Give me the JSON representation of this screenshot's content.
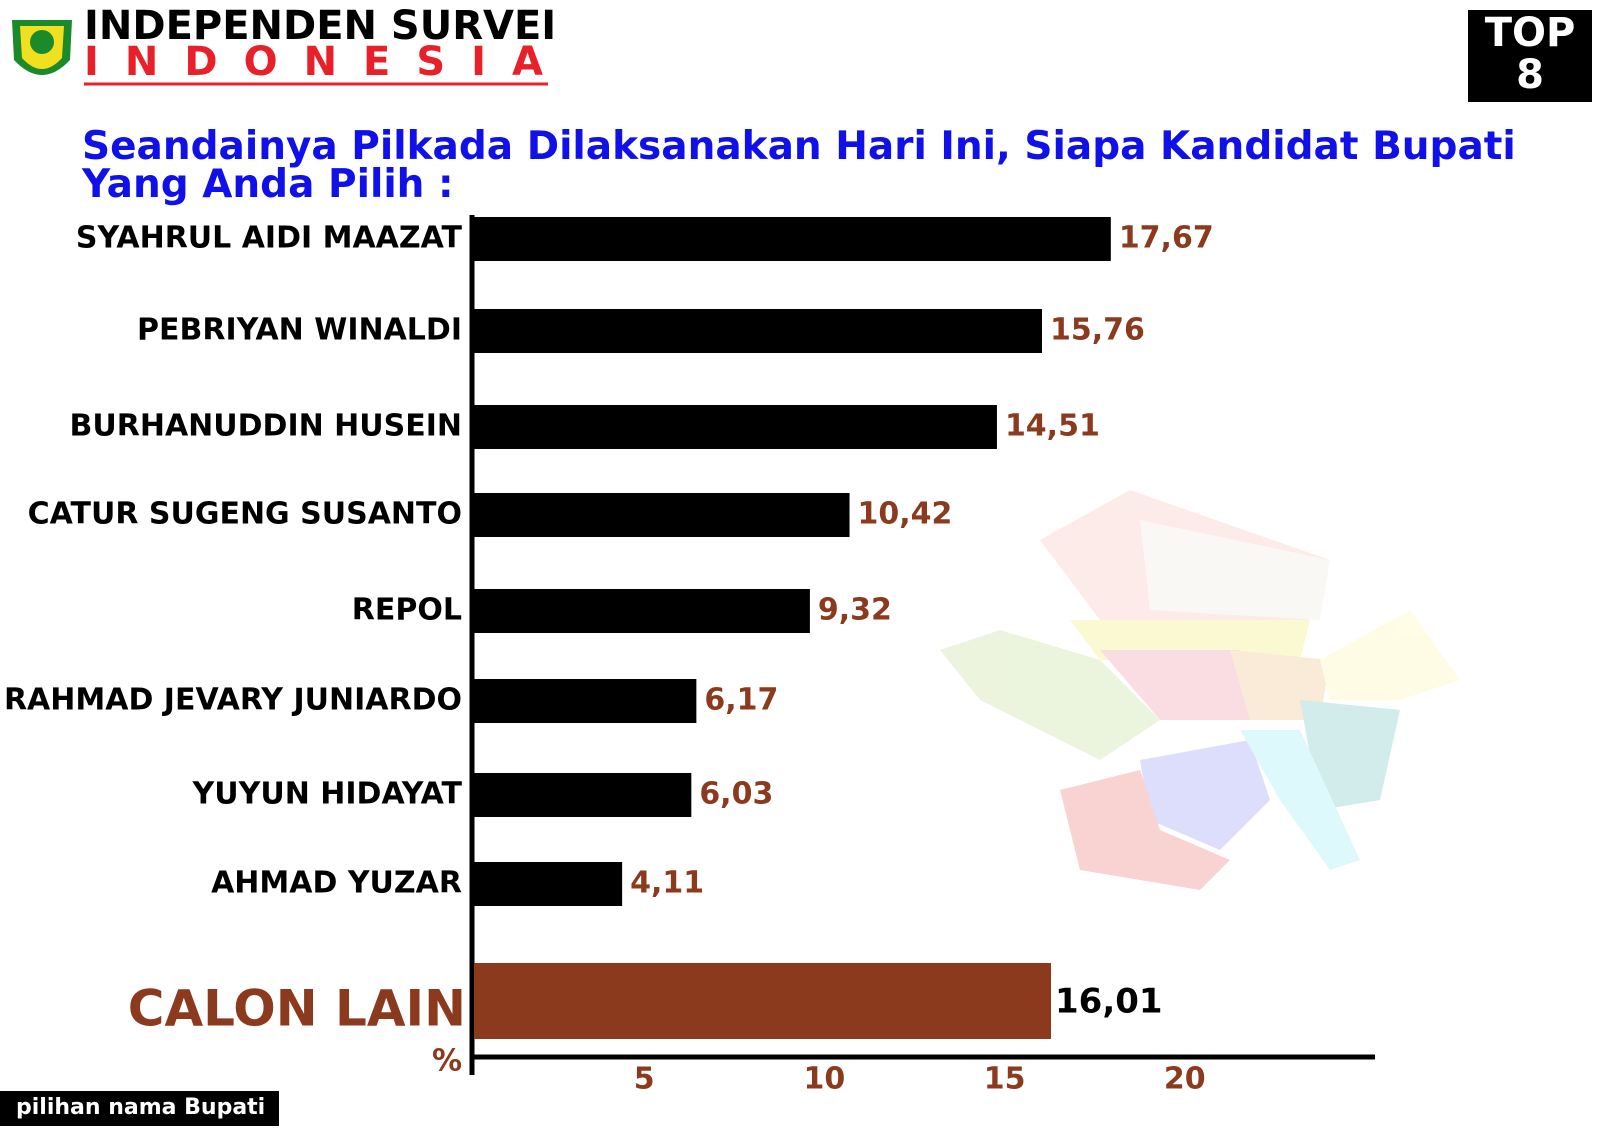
{
  "header": {
    "org_line1": "INDEPENDEN SURVEI",
    "org_line2": "INDONESIA",
    "badge": "TOP 8"
  },
  "chart_data": {
    "type": "bar",
    "orientation": "horizontal",
    "title": "Seandainya Pilkada Dilaksanakan Hari Ini, Siapa Kandidat Bupati Yang Anda Pilih :",
    "categories": [
      "SYAHRUL AIDI MAAZAT",
      "PEBRIYAN WINALDI",
      "BURHANUDDIN HUSEIN",
      "CATUR SUGENG SUSANTO",
      "REPOL",
      "RAHMAD JEVARY JUNIARDO",
      "YUYUN HIDAYAT",
      "AHMAD YUZAR"
    ],
    "values": [
      17.67,
      15.76,
      14.51,
      10.42,
      9.32,
      6.17,
      6.03,
      4.11
    ],
    "value_labels": [
      "17,67",
      "15,76",
      "14,51",
      "10,42",
      "9,32",
      "6,17",
      "6,03",
      "4,11"
    ],
    "color": "#000000",
    "highlight": {
      "category": "CALON LAIN",
      "value": 16.01,
      "value_label": "16,01",
      "color": "#8b3a1e"
    },
    "xlabel": "%",
    "xlim": [
      0,
      25
    ],
    "xticks": [
      5,
      10,
      15,
      20
    ]
  },
  "footer": "pilihan nama Bupati"
}
